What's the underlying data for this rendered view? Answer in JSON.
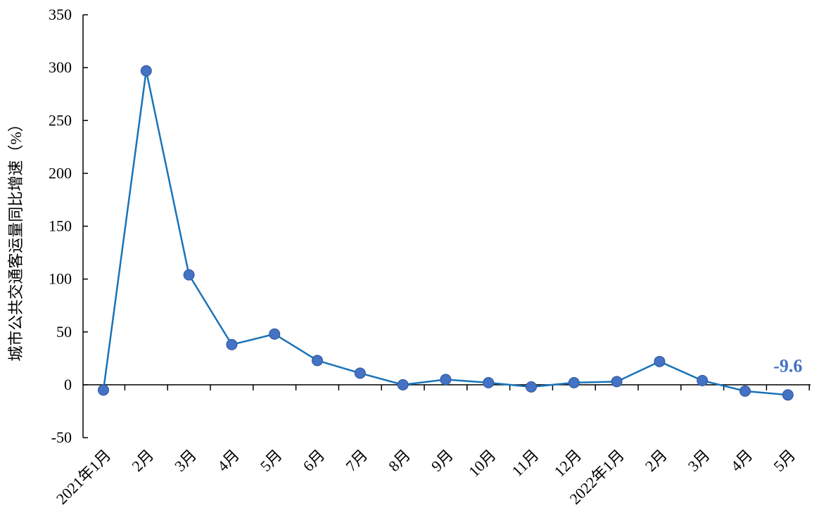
{
  "chart_data": {
    "type": "line",
    "title": "",
    "xlabel": "",
    "ylabel": "城市公共交通客运量同比增速（%）",
    "ylim": [
      -50,
      350
    ],
    "yticks": [
      -50,
      0,
      50,
      100,
      150,
      200,
      250,
      300,
      350
    ],
    "grid": false,
    "categories": [
      "2021年1月",
      "2月",
      "3月",
      "4月",
      "5月",
      "6月",
      "7月",
      "8月",
      "9月",
      "10月",
      "11月",
      "12月",
      "2022年1月",
      "2月",
      "3月",
      "4月",
      "5月"
    ],
    "series": [
      {
        "values": [
          -5,
          297,
          104,
          38,
          48,
          23,
          11,
          0,
          5,
          2,
          -2,
          2,
          3,
          22,
          4,
          -6,
          -9.6
        ]
      }
    ],
    "annotations": [
      {
        "text": "-9.6",
        "category_index": 16
      }
    ],
    "colors": {
      "line": "#1a73b8",
      "marker": "#4472c4",
      "annotation": "#4472c4"
    }
  }
}
